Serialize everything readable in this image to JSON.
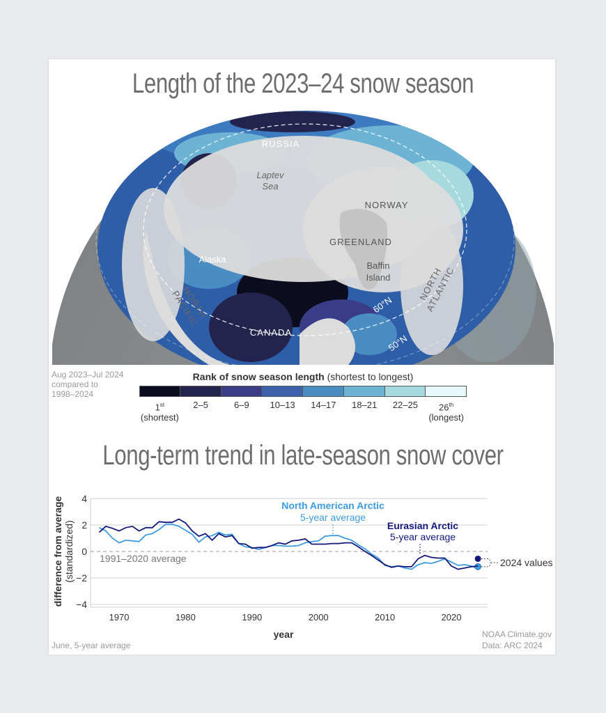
{
  "map": {
    "title": "Length of the 2023–24 snow season",
    "period_note": [
      "Aug 2023–Jul 2024",
      "compared to",
      "1998–2024"
    ],
    "labels": {
      "russia": "RUSSIA",
      "laptev": [
        "Laptev",
        "Sea"
      ],
      "norway": "NORWAY",
      "greenland": "GREENLAND",
      "baffin": [
        "Baffin",
        "Island"
      ],
      "alaska": "Alaska",
      "north_pacific": [
        "NORTH",
        "PACIFIC"
      ],
      "north_atlantic": [
        "NORTH",
        "ATLANTIC"
      ],
      "canada": "CANADA",
      "lat60": "60°N",
      "lat50": "50°N"
    },
    "legend": {
      "title_bold": "Rank of snow season length",
      "title_rest": " (shortest to longest)",
      "bins": [
        {
          "label": "1",
          "sup": "st",
          "sub": "(shortest)",
          "color": "#0b0c1e"
        },
        {
          "label": "2–5",
          "color": "#22244e"
        },
        {
          "label": "6–9",
          "color": "#3b3c88"
        },
        {
          "label": "10–13",
          "color": "#3c62ae"
        },
        {
          "label": "14–17",
          "color": "#4a8dc3"
        },
        {
          "label": "18–21",
          "color": "#6db3d3"
        },
        {
          "label": "22–25",
          "color": "#a7dade"
        },
        {
          "label": "26",
          "sup": "th",
          "sub": "(longest)",
          "color": "#e6f8f9"
        }
      ]
    }
  },
  "chart_title": "Long-term trend in late-season snow cover",
  "chart_data": {
    "type": "line",
    "xlabel": "year",
    "ylabel": [
      "difference from average",
      "(standardized)"
    ],
    "xlim": [
      1967,
      2025
    ],
    "ylim": [
      -4,
      4
    ],
    "xticks": [
      1970,
      1980,
      1990,
      2000,
      2010,
      2020
    ],
    "yticks": [
      4,
      2,
      0,
      -2,
      -4
    ],
    "grid": true,
    "reference_line": {
      "y": 0,
      "label": "1991–2020 average"
    },
    "x": [
      1967,
      1968,
      1969,
      1970,
      1971,
      1972,
      1973,
      1974,
      1975,
      1976,
      1977,
      1978,
      1979,
      1980,
      1981,
      1982,
      1983,
      1984,
      1985,
      1986,
      1987,
      1988,
      1989,
      1990,
      1991,
      1992,
      1993,
      1994,
      1995,
      1996,
      1997,
      1998,
      1999,
      2000,
      2001,
      2002,
      2003,
      2004,
      2005,
      2006,
      2007,
      2008,
      2009,
      2010,
      2011,
      2012,
      2013,
      2014,
      2015,
      2016,
      2017,
      2018,
      2019,
      2020,
      2021,
      2022,
      2023,
      2024
    ],
    "series": [
      {
        "name": "North American Arctic",
        "subtitle": "5-year average",
        "color": "#3d9be0",
        "values": [
          1.8,
          1.55,
          1.0,
          0.65,
          0.85,
          0.8,
          0.75,
          1.25,
          1.35,
          1.65,
          2.05,
          2.05,
          1.9,
          1.6,
          1.3,
          0.7,
          1.1,
          1.2,
          1.45,
          1.25,
          1.3,
          0.6,
          0.35,
          0.3,
          0.15,
          0.3,
          0.45,
          0.45,
          0.4,
          0.4,
          0.45,
          0.65,
          0.75,
          0.8,
          1.15,
          1.2,
          1.2,
          1.0,
          0.85,
          0.5,
          0.2,
          -0.2,
          -0.5,
          -1.05,
          -1.15,
          -1.1,
          -1.25,
          -1.35,
          -1.0,
          -0.85,
          -0.9,
          -0.75,
          -0.55,
          -0.8,
          -1.05,
          -1.0,
          -1.1,
          -1.3
        ],
        "value_2024": -1.15
      },
      {
        "name": "Eurasian Arctic",
        "subtitle": "5-year average",
        "color": "#14187a",
        "values": [
          1.45,
          1.9,
          1.75,
          1.55,
          1.8,
          1.9,
          1.55,
          1.8,
          1.8,
          2.25,
          2.2,
          2.2,
          2.45,
          2.15,
          1.55,
          1.15,
          1.35,
          0.85,
          1.35,
          1.1,
          1.2,
          0.6,
          0.55,
          0.25,
          0.3,
          0.3,
          0.45,
          0.65,
          0.55,
          0.8,
          0.85,
          0.95,
          0.55,
          0.55,
          0.55,
          0.6,
          0.6,
          0.65,
          0.65,
          0.35,
          0.0,
          -0.3,
          -0.65,
          -1.0,
          -1.2,
          -1.1,
          -1.15,
          -1.15,
          -0.55,
          -0.3,
          -0.45,
          -0.5,
          -0.5,
          -1.1,
          -1.35,
          -1.25,
          -1.15,
          -1.1
        ],
        "value_2024": -0.55
      }
    ],
    "annotation_2024": "2024 values",
    "footnote": "June, 5-year average",
    "credit": [
      "NOAA Climate.gov",
      "Data: ARC 2024"
    ]
  }
}
